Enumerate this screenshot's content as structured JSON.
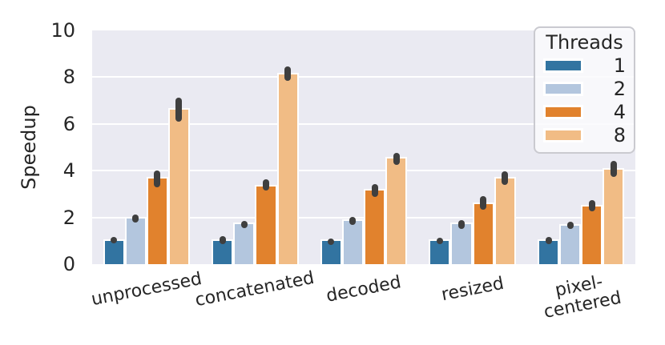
{
  "chart_data": {
    "type": "bar",
    "title": "",
    "xlabel": "",
    "ylabel": "Speedup",
    "ylim": [
      0,
      10
    ],
    "yticks": [
      0,
      2,
      4,
      6,
      8,
      10
    ],
    "grid": true,
    "plot_bg_color": "#eaeaf2",
    "gridline_color": "#ffffff",
    "error_bar_color": "#3f3f3f",
    "categories": [
      "unprocessed",
      "concatenated",
      "decoded",
      "resized",
      "pixel-\ncentered"
    ],
    "legend": {
      "title": "Threads",
      "position": "upper right"
    },
    "series": [
      {
        "name": "1",
        "color": "#3274a1",
        "values": [
          1.0,
          1.0,
          1.0,
          1.0,
          1.0
        ],
        "err_low": [
          0.88,
          0.85,
          0.88,
          0.88,
          0.85
        ],
        "err_high": [
          1.15,
          1.2,
          1.1,
          1.12,
          1.18
        ]
      },
      {
        "name": "2",
        "color": "#b3c6de",
        "values": [
          1.95,
          1.7,
          1.85,
          1.72,
          1.65
        ],
        "err_low": [
          1.78,
          1.55,
          1.68,
          1.5,
          1.5
        ],
        "err_high": [
          2.12,
          1.85,
          2.02,
          1.9,
          1.8
        ]
      },
      {
        "name": "4",
        "color": "#e1822d",
        "values": [
          3.65,
          3.32,
          3.15,
          2.56,
          2.45
        ],
        "err_low": [
          3.3,
          3.15,
          2.87,
          2.33,
          2.25
        ],
        "err_high": [
          4.0,
          3.63,
          3.43,
          2.9,
          2.75
        ]
      },
      {
        "name": "8",
        "color": "#f1bc85",
        "values": [
          6.6,
          8.12,
          4.52,
          3.66,
          4.05
        ],
        "err_low": [
          6.08,
          7.85,
          4.23,
          3.38,
          3.72
        ],
        "err_high": [
          7.12,
          8.45,
          4.77,
          3.98,
          4.42
        ]
      }
    ]
  }
}
